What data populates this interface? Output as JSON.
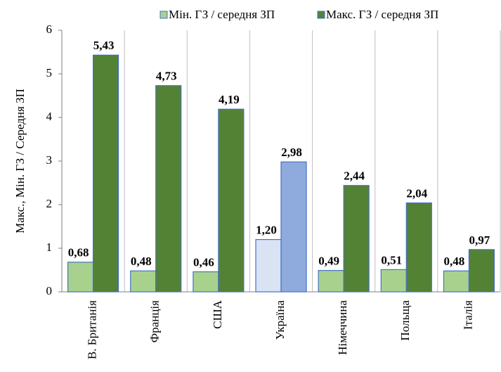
{
  "chart_data": {
    "type": "bar",
    "y_label": "Макс., Мін. ГЗ / Середня ЗП",
    "categories": [
      "В. Британія",
      "Франція",
      "США",
      "Україна",
      "Німеччина",
      "Польща",
      "Італія"
    ],
    "series": [
      {
        "name": "Мін. ГЗ / середня ЗП",
        "color": "#a9d18e",
        "colors": [
          "#a9d18e",
          "#a9d18e",
          "#a9d18e",
          "#dae3f3",
          "#a9d18e",
          "#a9d18e",
          "#a9d18e"
        ],
        "values": [
          0.68,
          0.48,
          0.46,
          1.2,
          0.49,
          0.51,
          0.48
        ],
        "value_labels": [
          "0,68",
          "0,48",
          "0,46",
          "1,20",
          "0,49",
          "0,51",
          "0,48"
        ]
      },
      {
        "name": "Макс. ГЗ / середня ЗП",
        "color": "#548235",
        "colors": [
          "#548235",
          "#548235",
          "#548235",
          "#8faadc",
          "#548235",
          "#548235",
          "#548235"
        ],
        "values": [
          5.43,
          4.73,
          4.19,
          2.98,
          2.44,
          2.04,
          0.97
        ],
        "value_labels": [
          "5,43",
          "4,73",
          "4,19",
          "2,98",
          "2,44",
          "2,04",
          "0,97"
        ]
      }
    ],
    "ylim": [
      0,
      6
    ],
    "yticks": [
      0,
      1,
      2,
      3,
      4,
      5,
      6
    ],
    "legend": "top"
  }
}
